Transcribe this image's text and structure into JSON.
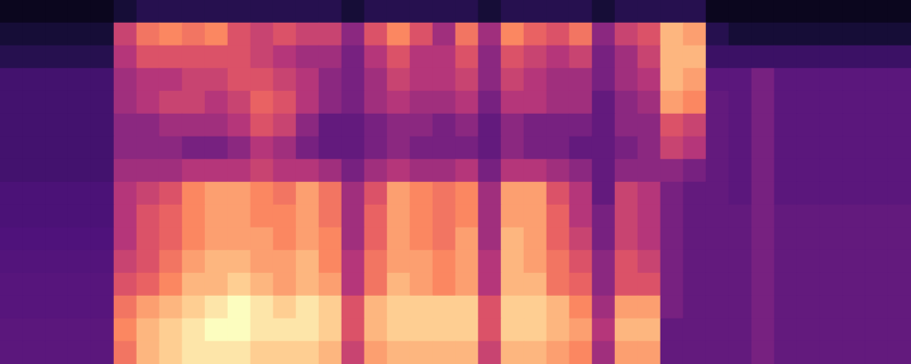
{
  "chart_data": {
    "type": "heatmap",
    "tick_labels": false,
    "color_range": [
      0,
      1
    ],
    "cells": [
      [
        0.05,
        0.05,
        0.05,
        0.05,
        0.05,
        0.1,
        0.15,
        0.15,
        0.15,
        0.15,
        0.15,
        0.15,
        0.15,
        0.15,
        0.15,
        0.1,
        0.15,
        0.15,
        0.15,
        0.15,
        0.15,
        0.1,
        0.15,
        0.15,
        0.15,
        0.15,
        0.1,
        0.15,
        0.15,
        0.15,
        0.15,
        0.05,
        0.05,
        0.05,
        0.05,
        0.05,
        0.05,
        0.05,
        0.05,
        0.05
      ],
      [
        0.1,
        0.1,
        0.1,
        0.1,
        0.1,
        0.55,
        0.7,
        0.75,
        0.7,
        0.75,
        0.6,
        0.55,
        0.6,
        0.55,
        0.55,
        0.4,
        0.6,
        0.75,
        0.6,
        0.45,
        0.7,
        0.45,
        0.75,
        0.65,
        0.6,
        0.7,
        0.4,
        0.55,
        0.6,
        0.85,
        0.8,
        0.15,
        0.1,
        0.1,
        0.1,
        0.1,
        0.1,
        0.1,
        0.1,
        0.1
      ],
      [
        0.15,
        0.15,
        0.15,
        0.15,
        0.15,
        0.5,
        0.6,
        0.6,
        0.6,
        0.6,
        0.6,
        0.55,
        0.5,
        0.45,
        0.45,
        0.35,
        0.5,
        0.6,
        0.5,
        0.5,
        0.6,
        0.4,
        0.6,
        0.55,
        0.5,
        0.55,
        0.35,
        0.45,
        0.55,
        0.85,
        0.85,
        0.2,
        0.2,
        0.2,
        0.2,
        0.2,
        0.2,
        0.2,
        0.2,
        0.2
      ],
      [
        0.22,
        0.22,
        0.22,
        0.22,
        0.22,
        0.45,
        0.5,
        0.5,
        0.55,
        0.55,
        0.6,
        0.6,
        0.55,
        0.5,
        0.4,
        0.35,
        0.45,
        0.55,
        0.5,
        0.5,
        0.55,
        0.4,
        0.55,
        0.5,
        0.45,
        0.45,
        0.35,
        0.45,
        0.5,
        0.85,
        0.8,
        0.28,
        0.28,
        0.35,
        0.28,
        0.28,
        0.28,
        0.28,
        0.28,
        0.28
      ],
      [
        0.22,
        0.22,
        0.22,
        0.22,
        0.22,
        0.45,
        0.5,
        0.55,
        0.55,
        0.5,
        0.55,
        0.65,
        0.6,
        0.5,
        0.4,
        0.35,
        0.45,
        0.5,
        0.45,
        0.45,
        0.5,
        0.35,
        0.5,
        0.5,
        0.45,
        0.45,
        0.3,
        0.4,
        0.45,
        0.8,
        0.75,
        0.3,
        0.28,
        0.35,
        0.28,
        0.28,
        0.28,
        0.28,
        0.28,
        0.28
      ],
      [
        0.22,
        0.22,
        0.22,
        0.22,
        0.22,
        0.4,
        0.4,
        0.45,
        0.45,
        0.45,
        0.5,
        0.6,
        0.55,
        0.4,
        0.3,
        0.3,
        0.35,
        0.4,
        0.4,
        0.35,
        0.4,
        0.3,
        0.4,
        0.35,
        0.35,
        0.35,
        0.3,
        0.4,
        0.4,
        0.6,
        0.55,
        0.3,
        0.28,
        0.35,
        0.28,
        0.28,
        0.28,
        0.28,
        0.28,
        0.28
      ],
      [
        0.22,
        0.22,
        0.22,
        0.22,
        0.22,
        0.4,
        0.4,
        0.4,
        0.35,
        0.35,
        0.4,
        0.5,
        0.45,
        0.35,
        0.3,
        0.3,
        0.35,
        0.4,
        0.35,
        0.35,
        0.35,
        0.3,
        0.4,
        0.35,
        0.35,
        0.3,
        0.3,
        0.35,
        0.4,
        0.55,
        0.5,
        0.3,
        0.28,
        0.35,
        0.28,
        0.28,
        0.28,
        0.28,
        0.28,
        0.28
      ],
      [
        0.22,
        0.22,
        0.22,
        0.22,
        0.22,
        0.45,
        0.45,
        0.45,
        0.5,
        0.5,
        0.5,
        0.55,
        0.5,
        0.5,
        0.45,
        0.35,
        0.45,
        0.5,
        0.45,
        0.45,
        0.5,
        0.35,
        0.5,
        0.5,
        0.45,
        0.4,
        0.3,
        0.4,
        0.4,
        0.4,
        0.35,
        0.3,
        0.28,
        0.35,
        0.28,
        0.28,
        0.28,
        0.28,
        0.28,
        0.28
      ],
      [
        0.24,
        0.24,
        0.24,
        0.24,
        0.24,
        0.5,
        0.55,
        0.6,
        0.75,
        0.8,
        0.8,
        0.75,
        0.7,
        0.8,
        0.7,
        0.45,
        0.6,
        0.8,
        0.75,
        0.7,
        0.75,
        0.45,
        0.8,
        0.8,
        0.6,
        0.5,
        0.3,
        0.55,
        0.5,
        0.35,
        0.3,
        0.3,
        0.28,
        0.35,
        0.28,
        0.28,
        0.28,
        0.28,
        0.28,
        0.28
      ],
      [
        0.24,
        0.24,
        0.24,
        0.24,
        0.24,
        0.5,
        0.6,
        0.65,
        0.75,
        0.8,
        0.8,
        0.75,
        0.75,
        0.8,
        0.7,
        0.45,
        0.65,
        0.8,
        0.75,
        0.7,
        0.75,
        0.45,
        0.8,
        0.8,
        0.65,
        0.5,
        0.35,
        0.55,
        0.5,
        0.35,
        0.3,
        0.3,
        0.3,
        0.35,
        0.3,
        0.3,
        0.3,
        0.3,
        0.3,
        0.3
      ],
      [
        0.25,
        0.25,
        0.25,
        0.25,
        0.25,
        0.5,
        0.6,
        0.65,
        0.75,
        0.8,
        0.8,
        0.8,
        0.75,
        0.8,
        0.75,
        0.45,
        0.65,
        0.8,
        0.75,
        0.7,
        0.8,
        0.45,
        0.85,
        0.8,
        0.65,
        0.55,
        0.35,
        0.55,
        0.5,
        0.35,
        0.3,
        0.3,
        0.3,
        0.35,
        0.3,
        0.3,
        0.3,
        0.3,
        0.3,
        0.3
      ],
      [
        0.26,
        0.26,
        0.26,
        0.26,
        0.26,
        0.55,
        0.6,
        0.7,
        0.8,
        0.85,
        0.85,
        0.8,
        0.8,
        0.85,
        0.75,
        0.5,
        0.7,
        0.8,
        0.8,
        0.75,
        0.8,
        0.5,
        0.85,
        0.8,
        0.7,
        0.6,
        0.4,
        0.6,
        0.55,
        0.35,
        0.3,
        0.3,
        0.3,
        0.35,
        0.3,
        0.3,
        0.3,
        0.3,
        0.3,
        0.3
      ],
      [
        0.27,
        0.27,
        0.27,
        0.27,
        0.27,
        0.6,
        0.65,
        0.75,
        0.85,
        0.85,
        0.9,
        0.85,
        0.8,
        0.85,
        0.8,
        0.5,
        0.7,
        0.85,
        0.8,
        0.75,
        0.8,
        0.5,
        0.85,
        0.85,
        0.7,
        0.65,
        0.4,
        0.6,
        0.6,
        0.35,
        0.3,
        0.3,
        0.3,
        0.35,
        0.3,
        0.3,
        0.3,
        0.3,
        0.3,
        0.3
      ],
      [
        0.27,
        0.27,
        0.27,
        0.27,
        0.27,
        0.7,
        0.8,
        0.85,
        0.9,
        0.95,
        1.0,
        0.95,
        0.9,
        0.95,
        0.9,
        0.6,
        0.85,
        0.9,
        0.9,
        0.9,
        0.9,
        0.6,
        0.9,
        0.9,
        0.85,
        0.75,
        0.45,
        0.8,
        0.8,
        0.35,
        0.3,
        0.3,
        0.3,
        0.35,
        0.3,
        0.3,
        0.3,
        0.3,
        0.3,
        0.3
      ],
      [
        0.28,
        0.28,
        0.28,
        0.28,
        0.28,
        0.75,
        0.85,
        0.9,
        0.95,
        1.0,
        1.0,
        0.95,
        0.95,
        0.95,
        0.9,
        0.6,
        0.85,
        0.9,
        0.9,
        0.9,
        0.9,
        0.6,
        0.9,
        0.9,
        0.85,
        0.8,
        0.5,
        0.85,
        0.85,
        0.3,
        0.3,
        0.3,
        0.3,
        0.35,
        0.3,
        0.3,
        0.3,
        0.3,
        0.3,
        0.3
      ],
      [
        0.28,
        0.28,
        0.28,
        0.28,
        0.28,
        0.7,
        0.85,
        0.9,
        0.95,
        0.95,
        0.95,
        0.9,
        0.9,
        0.9,
        0.85,
        0.55,
        0.8,
        0.85,
        0.85,
        0.85,
        0.85,
        0.55,
        0.85,
        0.85,
        0.8,
        0.75,
        0.45,
        0.8,
        0.8,
        0.3,
        0.3,
        0.3,
        0.3,
        0.35,
        0.3,
        0.3,
        0.3,
        0.3,
        0.3,
        0.3
      ]
    ]
  }
}
